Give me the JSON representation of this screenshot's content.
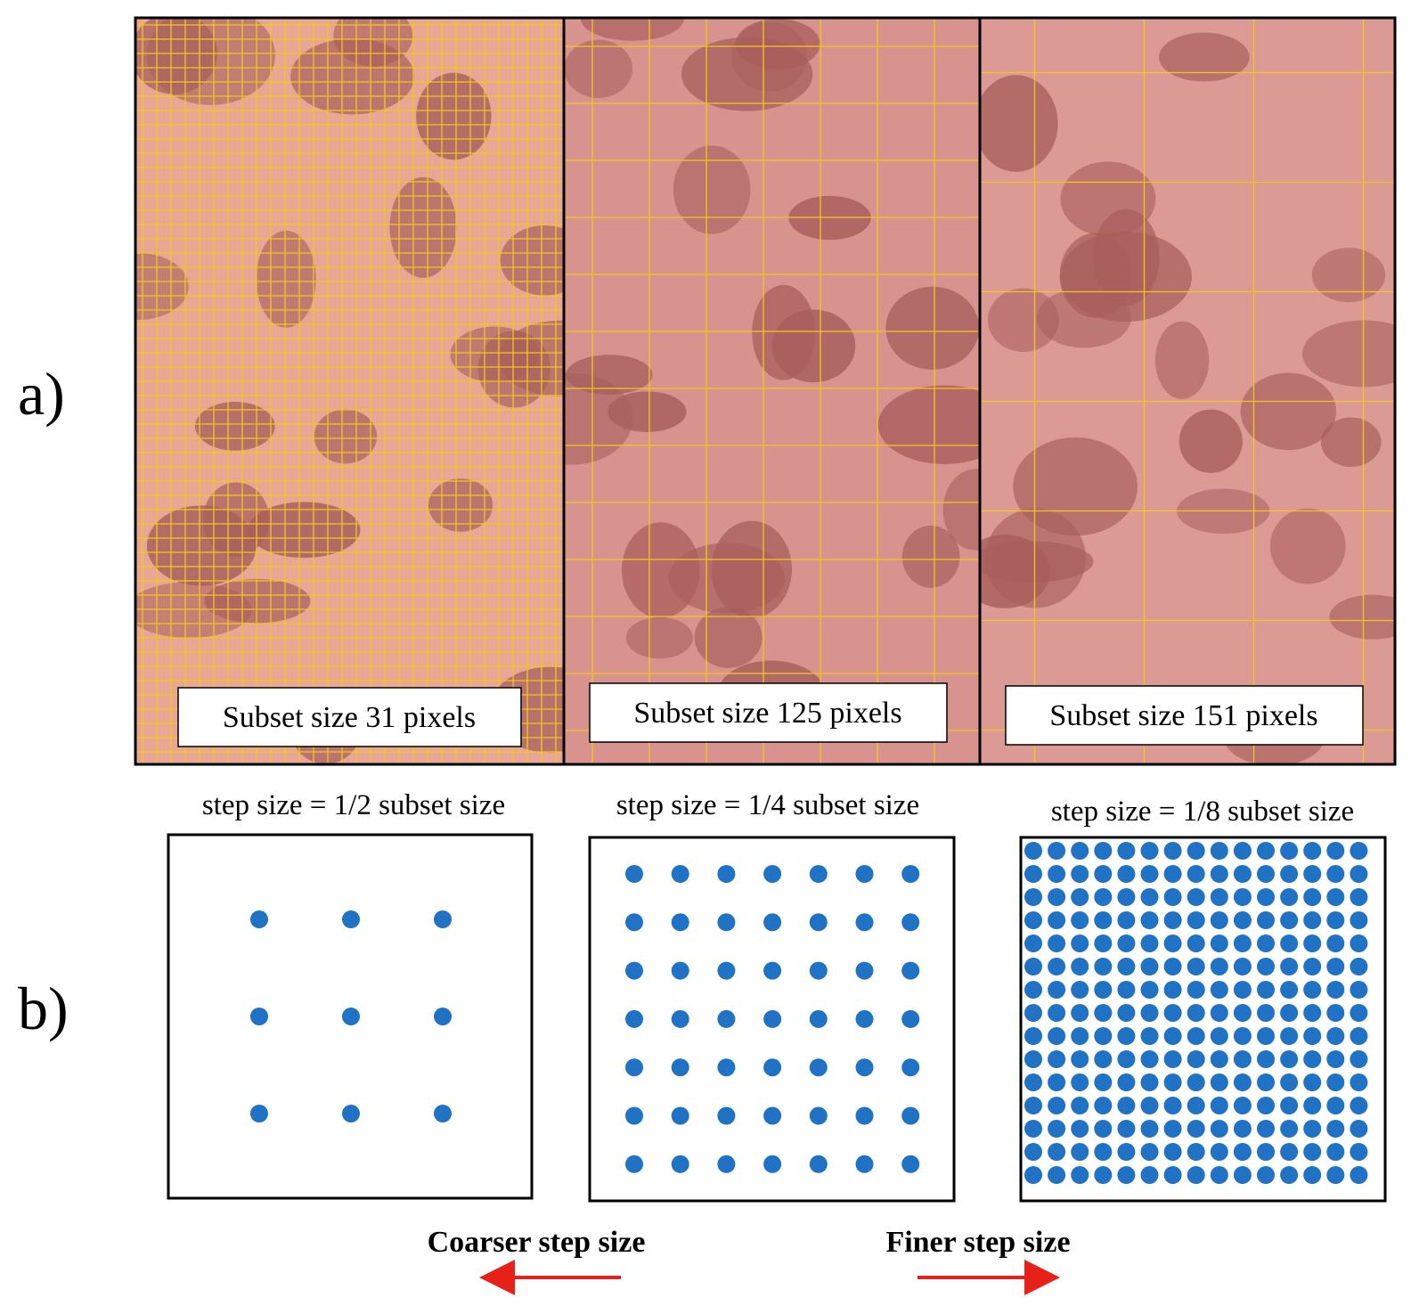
{
  "labels": {
    "a": "a)",
    "b": "b)"
  },
  "panels": [
    {
      "subset_label": "Subset size 31 pixels",
      "step_label": "step size = 1/2 subset size"
    },
    {
      "subset_label": "Subset size 125 pixels",
      "step_label": "step size = 1/4 subset size"
    },
    {
      "subset_label": "Subset size 151 pixels",
      "step_label": "step size = 1/8 subset size"
    }
  ],
  "arrows": {
    "coarser": "Coarser step size",
    "finer": "Finer step size"
  }
}
